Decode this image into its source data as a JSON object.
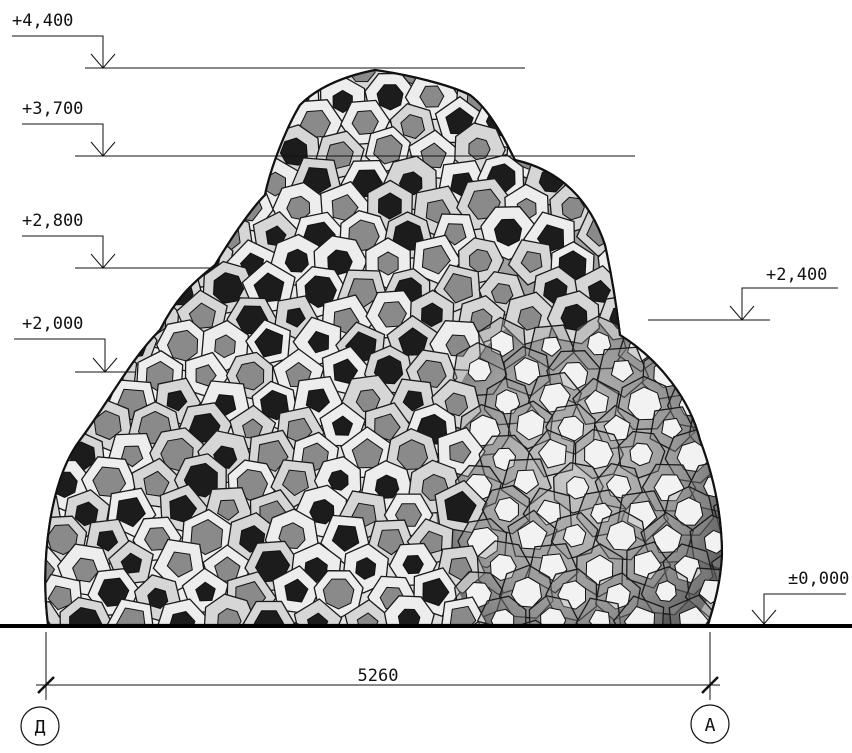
{
  "elevation_markers": [
    {
      "label": "+4,400"
    },
    {
      "label": "+3,700"
    },
    {
      "label": "+2,800"
    },
    {
      "label": "+2,000"
    },
    {
      "label": "+2,400"
    },
    {
      "label": "±0,000"
    }
  ],
  "dimension": {
    "value": "5260"
  },
  "axes": [
    {
      "label": "Д"
    },
    {
      "label": "А"
    }
  ]
}
